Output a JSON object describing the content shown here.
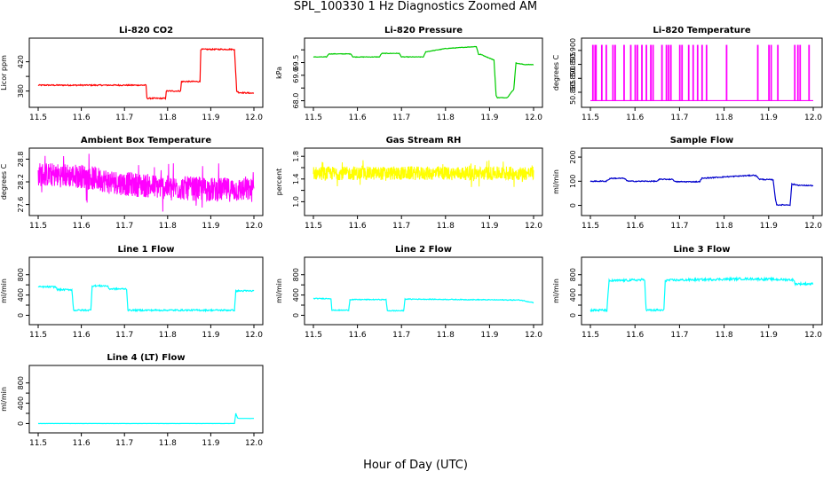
{
  "figure": {
    "title": "SPL_100330  1 Hz Diagnostics Zoomed AM",
    "xlabel": "Hour of Day (UTC)"
  },
  "chart_data": [
    {
      "type": "line",
      "title": "Li-820 CO2",
      "ylabel": "Licor ppm",
      "color": "#ff0000",
      "xlim": [
        11.5,
        12.0
      ],
      "ylim": [
        365,
        445
      ],
      "x_ticks": [
        "11.5",
        "11.6",
        "11.7",
        "11.8",
        "11.9",
        "12.0"
      ],
      "y_ticks": [
        380,
        400,
        420
      ],
      "y_tick_labels": [
        "380",
        "",
        "420"
      ],
      "noise": 0.8,
      "series": [
        {
          "name": "CO2",
          "x": [
            11.5,
            11.75,
            11.752,
            11.795,
            11.797,
            11.83,
            11.832,
            11.875,
            11.877,
            11.955,
            11.96,
            11.965,
            12.0
          ],
          "y": [
            388,
            388,
            370,
            370,
            380,
            380,
            393,
            393,
            437,
            437,
            380,
            378,
            377
          ]
        }
      ]
    },
    {
      "type": "line",
      "title": "Li-820 Pressure",
      "ylabel": "kPa",
      "color": "#00cc00",
      "xlim": [
        11.5,
        12.0
      ],
      "ylim": [
        67.95,
        70.25
      ],
      "x_ticks": [
        "11.5",
        "11.6",
        "11.7",
        "11.8",
        "11.9",
        "12.0"
      ],
      "y_ticks": [
        68.0,
        68.5,
        69.0,
        69.5,
        70.0
      ],
      "y_tick_labels": [
        "68.0",
        "",
        "69.0",
        "69.5",
        ""
      ],
      "noise": 0.01,
      "series": [
        {
          "name": "Pressure",
          "x": [
            11.5,
            11.53,
            11.535,
            11.585,
            11.59,
            11.65,
            11.655,
            11.695,
            11.7,
            11.75,
            11.755,
            11.8,
            11.87,
            11.875,
            11.88,
            11.91,
            11.915,
            11.918,
            11.94,
            11.955,
            11.96,
            11.98,
            12.0
          ],
          "y": [
            69.72,
            69.72,
            69.84,
            69.84,
            69.72,
            69.72,
            69.86,
            69.86,
            69.72,
            69.72,
            69.92,
            70.05,
            70.13,
            69.82,
            69.82,
            69.6,
            68.2,
            68.12,
            68.12,
            68.45,
            69.48,
            69.42,
            69.42
          ]
        }
      ]
    },
    {
      "type": "spikes",
      "title": "Li-820 Temperature",
      "ylabel": "degrees C",
      "color": "#ff00ff",
      "xlim": [
        11.5,
        12.0
      ],
      "ylim": [
        50.8815,
        50.9025
      ],
      "x_ticks": [
        "11.5",
        "11.6",
        "11.7",
        "11.8",
        "11.9",
        "12.0"
      ],
      "y_ticks": [
        50.885,
        50.89,
        50.895,
        50.9
      ],
      "y_tick_labels": [
        "50.885",
        "50.890",
        "50.895",
        "50.900"
      ],
      "baseline": 50.882,
      "high": 50.902,
      "spike_x": [
        11.505,
        11.51,
        11.512,
        11.525,
        11.535,
        11.55,
        11.555,
        11.575,
        11.59,
        11.6,
        11.605,
        11.615,
        11.625,
        11.635,
        11.64,
        11.66,
        11.67,
        11.675,
        11.68,
        11.7,
        11.705,
        11.72,
        11.73,
        11.74,
        11.75,
        11.76,
        11.805,
        11.875,
        11.9,
        11.905,
        11.92,
        11.958,
        11.965,
        11.97,
        11.99
      ]
    },
    {
      "type": "noisy",
      "title": "Ambient Box Temperature",
      "ylabel": "degrees C",
      "color": "#ff00ff",
      "xlim": [
        11.5,
        12.0
      ],
      "ylim": [
        27.45,
        28.95
      ],
      "x_ticks": [
        "11.5",
        "11.6",
        "11.7",
        "11.8",
        "11.9",
        "12.0"
      ],
      "y_ticks": [
        27.6,
        28.2,
        28.8
      ],
      "y_tick_labels": [
        "27.6",
        "28.2",
        "28.8"
      ],
      "trend_x": [
        11.5,
        11.6,
        11.7,
        11.8,
        11.9,
        12.0
      ],
      "trend_y": [
        28.4,
        28.35,
        28.15,
        28.05,
        28.0,
        27.98
      ],
      "amplitude": 0.32
    },
    {
      "type": "noisy",
      "title": "Gas Stream RH",
      "ylabel": "percent",
      "color": "#ffff00",
      "xlim": [
        11.5,
        12.0
      ],
      "ylim": [
        0.85,
        1.85
      ],
      "x_ticks": [
        "11.5",
        "11.6",
        "11.7",
        "11.8",
        "11.9",
        "12.0"
      ],
      "y_ticks": [
        1.0,
        1.2,
        1.4,
        1.6,
        1.8
      ],
      "y_tick_labels": [
        "1.0",
        "",
        "1.4",
        "",
        "1.8"
      ],
      "trend_x": [
        11.5,
        12.0
      ],
      "trend_y": [
        1.5,
        1.5
      ],
      "amplitude": 0.12
    },
    {
      "type": "line",
      "title": "Sample Flow",
      "ylabel": "ml/min",
      "color": "#0000cc",
      "xlim": [
        11.5,
        12.0
      ],
      "ylim": [
        -20,
        215
      ],
      "x_ticks": [
        "11.5",
        "11.6",
        "11.7",
        "11.8",
        "11.9",
        "12.0"
      ],
      "y_ticks": [
        0,
        100,
        200
      ],
      "y_tick_labels": [
        "0",
        "100",
        "200"
      ],
      "noise": 2,
      "series": [
        {
          "name": "Flow",
          "x": [
            11.5,
            11.535,
            11.545,
            11.575,
            11.585,
            11.65,
            11.655,
            11.685,
            11.69,
            11.745,
            11.75,
            11.8,
            11.87,
            11.88,
            11.91,
            11.915,
            11.918,
            11.948,
            11.952,
            11.97,
            12.0
          ],
          "y": [
            100,
            100,
            112,
            112,
            100,
            100,
            108,
            108,
            98,
            98,
            112,
            118,
            125,
            108,
            106,
            30,
            2,
            2,
            88,
            83,
            82
          ]
        }
      ]
    },
    {
      "type": "line",
      "title": "Line 1 Flow",
      "ylabel": "ml/min",
      "color": "#00ffff",
      "xlim": [
        11.5,
        12.0
      ],
      "ylim": [
        -80,
        1040
      ],
      "x_ticks": [
        "11.5",
        "11.6",
        "11.7",
        "11.8",
        "11.9",
        "12.0"
      ],
      "y_ticks": [
        0,
        200,
        400,
        600,
        800
      ],
      "y_tick_labels": [
        "0",
        "",
        "400",
        "",
        "800"
      ],
      "noise": 15,
      "series": [
        {
          "name": "Flow",
          "x": [
            11.5,
            11.54,
            11.545,
            11.578,
            11.582,
            11.622,
            11.625,
            11.66,
            11.665,
            11.705,
            11.708,
            11.955,
            11.958,
            12.0
          ],
          "y": [
            560,
            560,
            505,
            505,
            100,
            100,
            580,
            580,
            520,
            520,
            100,
            100,
            480,
            480
          ]
        }
      ]
    },
    {
      "type": "line",
      "title": "Line 2 Flow",
      "ylabel": "ml/min",
      "color": "#00ffff",
      "xlim": [
        11.5,
        12.0
      ],
      "ylim": [
        -80,
        1040
      ],
      "x_ticks": [
        "11.5",
        "11.6",
        "11.7",
        "11.8",
        "11.9",
        "12.0"
      ],
      "y_ticks": [
        0,
        200,
        400,
        600,
        800
      ],
      "y_tick_labels": [
        "0",
        "",
        "400",
        "",
        "800"
      ],
      "noise": 8,
      "series": [
        {
          "name": "Flow",
          "x": [
            11.5,
            11.54,
            11.542,
            11.58,
            11.583,
            11.665,
            11.668,
            11.705,
            11.708,
            11.97,
            12.0
          ],
          "y": [
            330,
            330,
            100,
            100,
            310,
            310,
            90,
            90,
            320,
            300,
            250
          ]
        }
      ]
    },
    {
      "type": "line",
      "title": "Line 3 Flow",
      "ylabel": "ml/min",
      "color": "#00ffff",
      "xlim": [
        11.5,
        12.0
      ],
      "ylim": [
        -80,
        1040
      ],
      "x_ticks": [
        "11.5",
        "11.6",
        "11.7",
        "11.8",
        "11.9",
        "12.0"
      ],
      "y_ticks": [
        0,
        200,
        400,
        600,
        800
      ],
      "y_tick_labels": [
        "0",
        "",
        "400",
        "",
        "800"
      ],
      "noise": 22,
      "series": [
        {
          "name": "Flow",
          "x": [
            11.5,
            11.537,
            11.542,
            11.622,
            11.625,
            11.665,
            11.668,
            11.85,
            11.955,
            11.96,
            12.0
          ],
          "y": [
            100,
            100,
            680,
            700,
            100,
            100,
            690,
            720,
            700,
            620,
            620
          ]
        }
      ]
    },
    {
      "type": "line",
      "title": "Line 4 (LT) Flow",
      "ylabel": "ml/min",
      "color": "#00ffff",
      "xlim": [
        11.5,
        12.0
      ],
      "ylim": [
        -80,
        1040
      ],
      "x_ticks": [
        "11.5",
        "11.6",
        "11.7",
        "11.8",
        "11.9",
        "12.0"
      ],
      "y_ticks": [
        0,
        200,
        400,
        600,
        800
      ],
      "y_tick_labels": [
        "0",
        "",
        "400",
        "",
        "800"
      ],
      "noise": 1,
      "series": [
        {
          "name": "Flow",
          "x": [
            11.5,
            11.955,
            11.958,
            11.962,
            11.966,
            12.0
          ],
          "y": [
            0,
            0,
            200,
            110,
            100,
            100
          ]
        }
      ]
    }
  ]
}
